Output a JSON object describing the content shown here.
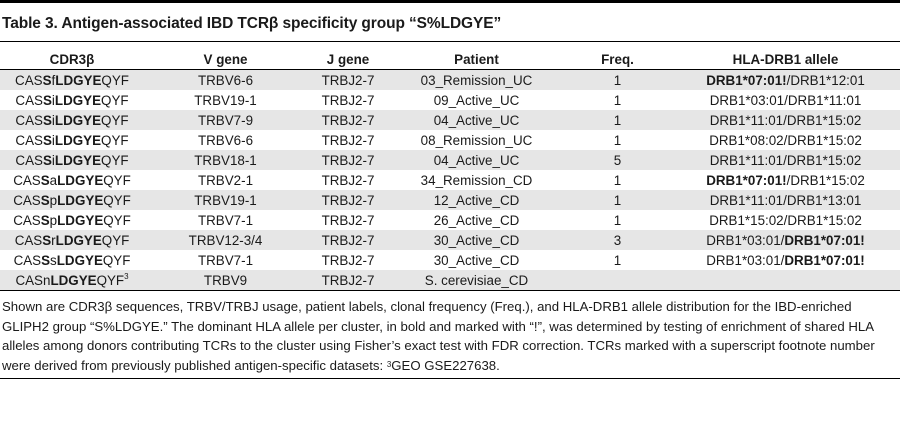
{
  "title": "Table 3. Antigen-associated IBD TCRβ specificity group “S%LDGYE”",
  "headers": {
    "cdr3": "CDR3β",
    "v_gene": "V gene",
    "j_gene": "J gene",
    "patient": "Patient",
    "freq": "Freq.",
    "hla": "HLA-DRB1 allele"
  },
  "rows": [
    {
      "cdr3": [
        {
          "t": "CAS",
          "b": false
        },
        {
          "t": "S",
          "b": true
        },
        {
          "t": "f",
          "b": false
        },
        {
          "t": "LDGYE",
          "b": true
        },
        {
          "t": "QYF",
          "b": false
        }
      ],
      "v_gene": "TRBV6-6",
      "j_gene": "TRBJ2-7",
      "patient": "03_Remission_UC",
      "freq": "1",
      "hla": [
        {
          "t": "DRB1*07:01!",
          "b": true
        },
        {
          "t": "/DRB1*12:01",
          "b": false
        }
      ]
    },
    {
      "cdr3": [
        {
          "t": "CAS",
          "b": false
        },
        {
          "t": "S",
          "b": true
        },
        {
          "t": "i",
          "b": false
        },
        {
          "t": "LDGYE",
          "b": true
        },
        {
          "t": "QYF",
          "b": false
        }
      ],
      "v_gene": "TRBV19-1",
      "j_gene": "TRBJ2-7",
      "patient": "09_Active_UC",
      "freq": "1",
      "hla": [
        {
          "t": "DRB1*03:01/DRB1*11:01",
          "b": false
        }
      ]
    },
    {
      "cdr3": [
        {
          "t": "CAS",
          "b": false
        },
        {
          "t": "S",
          "b": true
        },
        {
          "t": "i",
          "b": false
        },
        {
          "t": "LDGYE",
          "b": true
        },
        {
          "t": "QYF",
          "b": false
        }
      ],
      "v_gene": "TRBV7-9",
      "j_gene": "TRBJ2-7",
      "patient": "04_Active_UC",
      "freq": "1",
      "hla": [
        {
          "t": "DRB1*11:01/DRB1*15:02",
          "b": false
        }
      ]
    },
    {
      "cdr3": [
        {
          "t": "CAS",
          "b": false
        },
        {
          "t": "S",
          "b": true
        },
        {
          "t": "i",
          "b": false
        },
        {
          "t": "LDGYE",
          "b": true
        },
        {
          "t": "QYF",
          "b": false
        }
      ],
      "v_gene": "TRBV6-6",
      "j_gene": "TRBJ2-7",
      "patient": "08_Remission_UC",
      "freq": "1",
      "hla": [
        {
          "t": "DRB1*08:02/DRB1*15:02",
          "b": false
        }
      ]
    },
    {
      "cdr3": [
        {
          "t": "CAS",
          "b": false
        },
        {
          "t": "S",
          "b": true
        },
        {
          "t": "i",
          "b": false
        },
        {
          "t": "LDGYE",
          "b": true
        },
        {
          "t": "QYF",
          "b": false
        }
      ],
      "v_gene": "TRBV18-1",
      "j_gene": "TRBJ2-7",
      "patient": "04_Active_UC",
      "freq": "5",
      "hla": [
        {
          "t": "DRB1*11:01/DRB1*15:02",
          "b": false
        }
      ]
    },
    {
      "cdr3": [
        {
          "t": "CAS",
          "b": false
        },
        {
          "t": "S",
          "b": true
        },
        {
          "t": "a",
          "b": false
        },
        {
          "t": "LDGYE",
          "b": true
        },
        {
          "t": "QYF",
          "b": false
        }
      ],
      "v_gene": "TRBV2-1",
      "j_gene": "TRBJ2-7",
      "patient": "34_Remission_CD",
      "freq": "1",
      "hla": [
        {
          "t": "DRB1*07:01!",
          "b": true
        },
        {
          "t": "/DRB1*15:02",
          "b": false
        }
      ]
    },
    {
      "cdr3": [
        {
          "t": "CAS",
          "b": false
        },
        {
          "t": "S",
          "b": true
        },
        {
          "t": "p",
          "b": false
        },
        {
          "t": "LDGYE",
          "b": true
        },
        {
          "t": "QYF",
          "b": false
        }
      ],
      "v_gene": "TRBV19-1",
      "j_gene": "TRBJ2-7",
      "patient": "12_Active_CD",
      "freq": "1",
      "hla": [
        {
          "t": "DRB1*11:01/DRB1*13:01",
          "b": false
        }
      ]
    },
    {
      "cdr3": [
        {
          "t": "CAS",
          "b": false
        },
        {
          "t": "S",
          "b": true
        },
        {
          "t": "p",
          "b": false
        },
        {
          "t": "LDGYE",
          "b": true
        },
        {
          "t": "QYF",
          "b": false
        }
      ],
      "v_gene": "TRBV7-1",
      "j_gene": "TRBJ2-7",
      "patient": "26_Active_CD",
      "freq": "1",
      "hla": [
        {
          "t": "DRB1*15:02/DRB1*15:02",
          "b": false
        }
      ]
    },
    {
      "cdr3": [
        {
          "t": "CAS",
          "b": false
        },
        {
          "t": "S",
          "b": true
        },
        {
          "t": "r",
          "b": false
        },
        {
          "t": "LDGYE",
          "b": true
        },
        {
          "t": "QYF",
          "b": false
        }
      ],
      "v_gene": "TRBV12-3/4",
      "j_gene": "TRBJ2-7",
      "patient": "30_Active_CD",
      "freq": "3",
      "hla": [
        {
          "t": "DRB1*03:01/",
          "b": false
        },
        {
          "t": "DRB1*07:01!",
          "b": true
        }
      ]
    },
    {
      "cdr3": [
        {
          "t": "CAS",
          "b": false
        },
        {
          "t": "S",
          "b": true
        },
        {
          "t": "s",
          "b": false
        },
        {
          "t": "LDGYE",
          "b": true
        },
        {
          "t": "QYF",
          "b": false
        }
      ],
      "v_gene": "TRBV7-1",
      "j_gene": "TRBJ2-7",
      "patient": "30_Active_CD",
      "freq": "1",
      "hla": [
        {
          "t": "DRB1*03:01/",
          "b": false
        },
        {
          "t": "DRB1*07:01!",
          "b": true
        }
      ]
    },
    {
      "cdr3": [
        {
          "t": "CAS",
          "b": false
        },
        {
          "t": "n",
          "b": false
        },
        {
          "t": "LDGYE",
          "b": true
        },
        {
          "t": "QYF",
          "b": false
        },
        {
          "t": "3",
          "sup": true
        }
      ],
      "v_gene": "TRBV9",
      "j_gene": "TRBJ2-7",
      "patient": "S. cerevisiae_CD",
      "freq": "",
      "hla": []
    }
  ],
  "footnote": "Shown are CDR3β sequences, TRBV/TRBJ usage, patient labels, clonal frequency (Freq.), and HLA-DRB1 allele distribution for the IBD-enriched GLIPH2 group “S%LDGYE.” The dominant HLA allele per cluster, in bold and marked with “!”, was determined by testing of enrichment of shared HLA alleles among donors contributing TCRs to the cluster using Fisher’s exact test with FDR correction. TCRs marked with a superscript footnote number were derived from previously published antigen-specific datasets: ",
  "footnote_ref": "3",
  "footnote_tail": "GEO GSE227638."
}
